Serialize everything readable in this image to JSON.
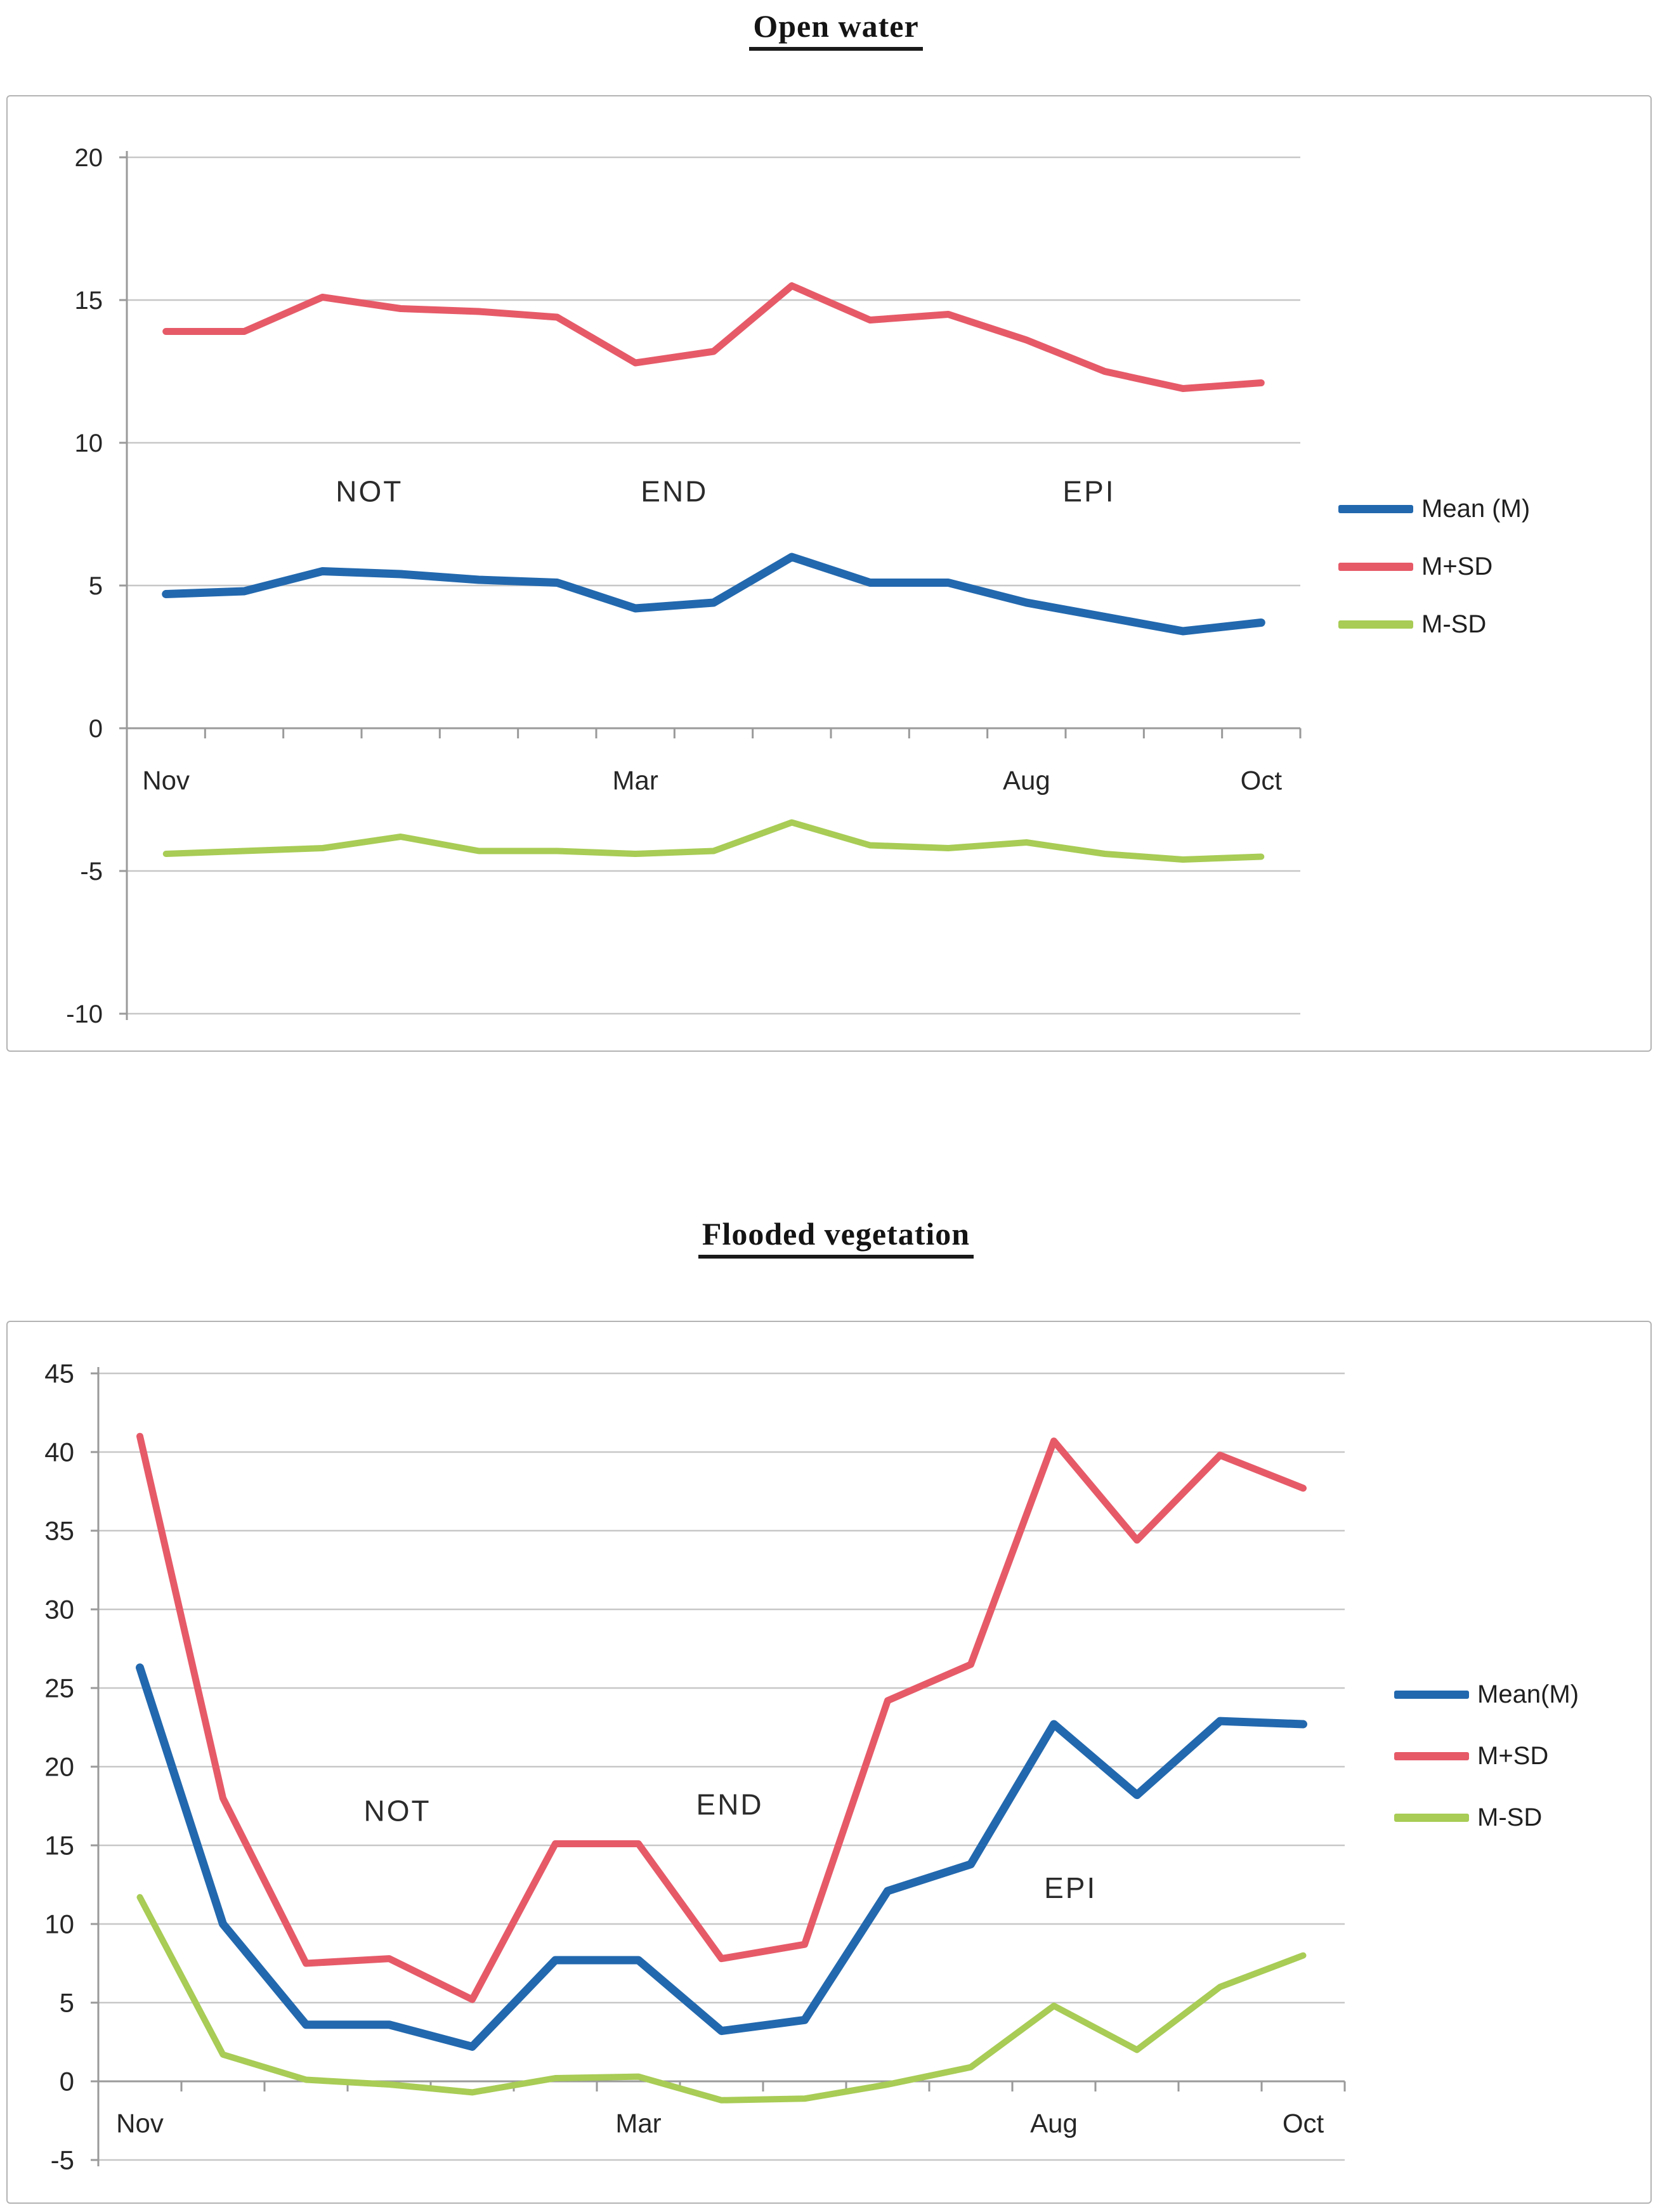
{
  "chart_data": [
    {
      "type": "line",
      "title": "Open water",
      "n_points": 15,
      "x_tick_labels": [
        {
          "index": 0,
          "label": "Nov"
        },
        {
          "index": 6,
          "label": "Mar"
        },
        {
          "index": 11,
          "label": "Aug"
        },
        {
          "index": 14,
          "label": "Oct"
        }
      ],
      "ylim": [
        -10,
        20
      ],
      "yticks": [
        20,
        15,
        10,
        5,
        0,
        -5,
        -10
      ],
      "grid": true,
      "legend_position": "right",
      "series": [
        {
          "name": "Mean (M)",
          "color": "#2268AE",
          "values": [
            4.7,
            4.8,
            5.5,
            5.4,
            5.2,
            5.1,
            4.2,
            4.4,
            6.0,
            5.1,
            5.1,
            4.4,
            3.9,
            3.4,
            3.7
          ]
        },
        {
          "name": "M+SD",
          "color": "#E65A68",
          "values": [
            13.9,
            13.9,
            15.1,
            14.7,
            14.6,
            14.4,
            12.8,
            13.2,
            15.5,
            14.3,
            14.5,
            13.6,
            12.5,
            11.9,
            12.1
          ]
        },
        {
          "name": "M-SD",
          "color": "#A8CC55",
          "values": [
            -4.4,
            -4.3,
            -4.2,
            -3.8,
            -4.3,
            -4.3,
            -4.4,
            -4.3,
            -3.3,
            -4.1,
            -4.2,
            -4.0,
            -4.4,
            -4.6,
            -4.5
          ]
        }
      ],
      "annotations": [
        {
          "text": "NOT",
          "cat": 2.6,
          "value": 8.3
        },
        {
          "text": "END",
          "cat": 6.5,
          "value": 8.3
        },
        {
          "text": "EPI",
          "cat": 11.8,
          "value": 8.3
        }
      ]
    },
    {
      "type": "line",
      "title": "Flooded vegetation",
      "n_points": 15,
      "x_tick_labels": [
        {
          "index": 0,
          "label": "Nov"
        },
        {
          "index": 6,
          "label": "Mar"
        },
        {
          "index": 11,
          "label": "Aug"
        },
        {
          "index": 14,
          "label": "Oct"
        }
      ],
      "ylim": [
        -5,
        45
      ],
      "yticks": [
        45,
        40,
        35,
        30,
        25,
        20,
        15,
        10,
        5,
        0,
        -5
      ],
      "grid": true,
      "legend_position": "right",
      "series": [
        {
          "name": "Mean(M)",
          "color": "#2268AE",
          "values": [
            26.3,
            10.0,
            3.6,
            3.6,
            2.2,
            7.7,
            7.7,
            3.2,
            3.9,
            12.1,
            13.8,
            22.7,
            18.2,
            22.9,
            22.7
          ]
        },
        {
          "name": "M+SD",
          "color": "#E65A68",
          "values": [
            41.0,
            18.0,
            7.5,
            7.8,
            5.2,
            15.1,
            15.1,
            7.8,
            8.7,
            24.2,
            26.5,
            40.7,
            34.4,
            39.8,
            37.7
          ]
        },
        {
          "name": "M-SD",
          "color": "#A8CC55",
          "values": [
            11.7,
            1.7,
            0.1,
            -0.2,
            -0.7,
            0.2,
            0.3,
            -1.2,
            -1.1,
            -0.2,
            0.9,
            4.8,
            2.0,
            6.0,
            8.0
          ]
        }
      ],
      "annotations": [
        {
          "text": "NOT",
          "cat": 3.1,
          "value": 17.2
        },
        {
          "text": "END",
          "cat": 7.1,
          "value": 17.6
        },
        {
          "text": "EPI",
          "cat": 11.2,
          "value": 12.3
        }
      ]
    }
  ]
}
